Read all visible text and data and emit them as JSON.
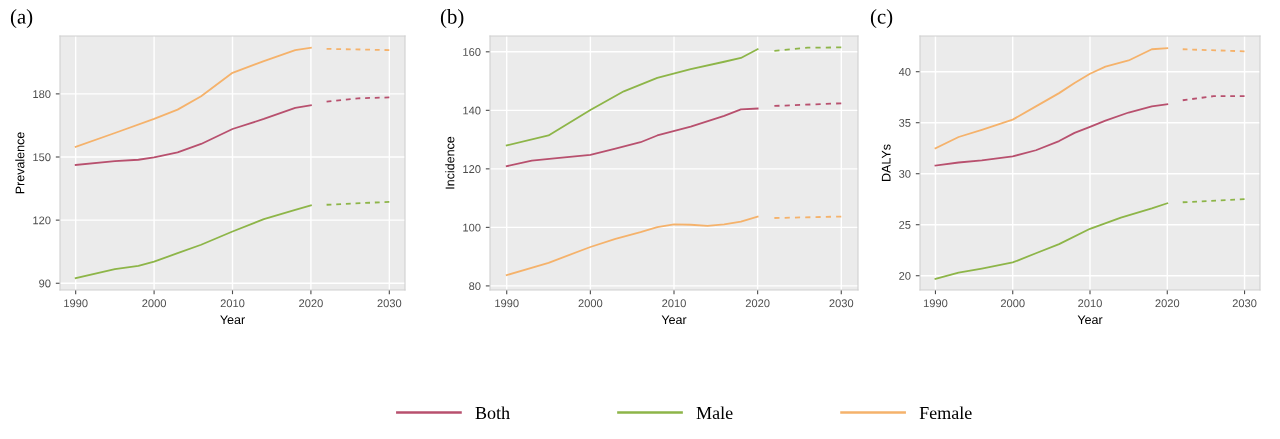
{
  "chart_data": [
    {
      "type": "line",
      "title": "(a)",
      "xlabel": "Year",
      "ylabel": "Prevalence",
      "xlim": [
        1988,
        2032
      ],
      "ylim": [
        86.8,
        207.5
      ],
      "xticks": [
        1990,
        2000,
        2010,
        2020,
        2030
      ],
      "yticks": [
        90,
        120,
        150,
        180
      ],
      "grid": true,
      "legend": "bottom",
      "series": [
        {
          "name": "Both",
          "color": "#b8506e",
          "line_style": "solid",
          "x": [
            1990,
            1995,
            1998,
            2000,
            2003,
            2006,
            2010,
            2014,
            2018,
            2020
          ],
          "values": [
            146.2,
            148,
            148.7,
            149.8,
            152.2,
            156.2,
            163.3,
            168.1,
            173.3,
            174.6
          ]
        },
        {
          "name": "Male",
          "color": "#8db548",
          "line_style": "solid",
          "x": [
            1990,
            1995,
            1998,
            2000,
            2003,
            2006,
            2010,
            2014,
            2018,
            2020
          ],
          "values": [
            92.4,
            96.7,
            98.3,
            100.3,
            104.3,
            108.3,
            114.6,
            120.5,
            124.9,
            127
          ]
        },
        {
          "name": "Female",
          "color": "#f5b26b",
          "line_style": "solid",
          "x": [
            1990,
            1995,
            2000,
            2003,
            2006,
            2010,
            2014,
            2018,
            2020
          ],
          "values": [
            154.8,
            161.4,
            168.1,
            172.5,
            178.9,
            190,
            195.6,
            200.8,
            201.9
          ]
        },
        {
          "color": "#b8506e",
          "line_style": "dashed",
          "x": [
            2022,
            2026,
            2030
          ],
          "values": [
            176.3,
            177.9,
            178.3
          ]
        },
        {
          "color": "#8db548",
          "line_style": "dashed",
          "x": [
            2022,
            2030
          ],
          "values": [
            127.3,
            128.7
          ]
        },
        {
          "color": "#f5b26b",
          "line_style": "dashed",
          "x": [
            2022,
            2030
          ],
          "values": [
            201.4,
            200.8
          ]
        }
      ]
    },
    {
      "type": "line",
      "title": "(b)",
      "xlabel": "Year",
      "ylabel": "Incidence",
      "xlim": [
        1988,
        2032
      ],
      "ylim": [
        78.6,
        165.4
      ],
      "xticks": [
        1990,
        2000,
        2010,
        2020,
        2030
      ],
      "yticks": [
        80,
        100,
        120,
        140,
        160
      ],
      "grid": true,
      "series": [
        {
          "name": "Both",
          "color": "#b8506e",
          "line_style": "solid",
          "x": [
            1990,
            1993,
            1996,
            2000,
            2003,
            2006,
            2008,
            2012,
            2016,
            2018,
            2020
          ],
          "values": [
            120.9,
            122.8,
            123.7,
            124.8,
            126.9,
            129.1,
            131.4,
            134.4,
            138.1,
            140.3,
            140.6
          ]
        },
        {
          "name": "Male",
          "color": "#8db548",
          "line_style": "solid",
          "x": [
            1990,
            1995,
            2000,
            2004,
            2008,
            2012,
            2016,
            2018,
            2020
          ],
          "values": [
            128,
            131.4,
            140.1,
            146.5,
            151.1,
            154.1,
            156.6,
            157.9,
            160.9
          ]
        },
        {
          "name": "Female",
          "color": "#f5b26b",
          "line_style": "solid",
          "x": [
            1990,
            1995,
            2000,
            2003,
            2006,
            2008,
            2010,
            2012,
            2014,
            2016,
            2018,
            2020
          ],
          "values": [
            83.7,
            87.9,
            93.3,
            96.1,
            98.4,
            100.1,
            101,
            100.9,
            100.5,
            101,
            102,
            103.7
          ]
        },
        {
          "color": "#b8506e",
          "line_style": "dashed",
          "x": [
            2022,
            2030
          ],
          "values": [
            141.5,
            142.4
          ]
        },
        {
          "color": "#8db548",
          "line_style": "dashed",
          "x": [
            2022,
            2026,
            2030
          ],
          "values": [
            160.3,
            161.4,
            161.5
          ]
        },
        {
          "color": "#f5b26b",
          "line_style": "dashed",
          "x": [
            2022,
            2030
          ],
          "values": [
            103.2,
            103.7
          ]
        }
      ]
    },
    {
      "type": "line",
      "title": "(c)",
      "xlabel": "Year",
      "ylabel": "DALYs",
      "xlim": [
        1988,
        2032
      ],
      "ylim": [
        18.6,
        43.5
      ],
      "xticks": [
        1990,
        2000,
        2010,
        2020,
        2030
      ],
      "yticks": [
        20,
        25,
        30,
        35,
        40
      ],
      "grid": true,
      "series": [
        {
          "name": "Both",
          "color": "#b8506e",
          "line_style": "solid",
          "x": [
            1990,
            1993,
            1996,
            2000,
            2003,
            2006,
            2008,
            2010,
            2012,
            2015,
            2018,
            2020
          ],
          "values": [
            30.8,
            31.1,
            31.3,
            31.7,
            32.3,
            33.2,
            34,
            34.6,
            35.2,
            36,
            36.6,
            36.8
          ]
        },
        {
          "name": "Male",
          "color": "#8db548",
          "line_style": "solid",
          "x": [
            1990,
            1993,
            1996,
            2000,
            2003,
            2006,
            2010,
            2014,
            2018,
            2020
          ],
          "values": [
            19.7,
            20.3,
            20.7,
            21.3,
            22.2,
            23.1,
            24.6,
            25.7,
            26.6,
            27.1
          ]
        },
        {
          "name": "Female",
          "color": "#f5b26b",
          "line_style": "solid",
          "x": [
            1990,
            1993,
            1996,
            2000,
            2003,
            2006,
            2008,
            2010,
            2012,
            2015,
            2018,
            2020
          ],
          "values": [
            32.5,
            33.6,
            34.3,
            35.3,
            36.6,
            37.9,
            38.9,
            39.8,
            40.5,
            41.1,
            42.2,
            42.3
          ]
        },
        {
          "color": "#b8506e",
          "line_style": "dashed",
          "x": [
            2022,
            2026,
            2030
          ],
          "values": [
            37.2,
            37.6,
            37.6
          ]
        },
        {
          "color": "#8db548",
          "line_style": "dashed",
          "x": [
            2022,
            2030
          ],
          "values": [
            27.2,
            27.5
          ]
        },
        {
          "color": "#f5b26b",
          "line_style": "dashed",
          "x": [
            2022,
            2030
          ],
          "values": [
            42.2,
            42
          ]
        }
      ]
    }
  ]
}
